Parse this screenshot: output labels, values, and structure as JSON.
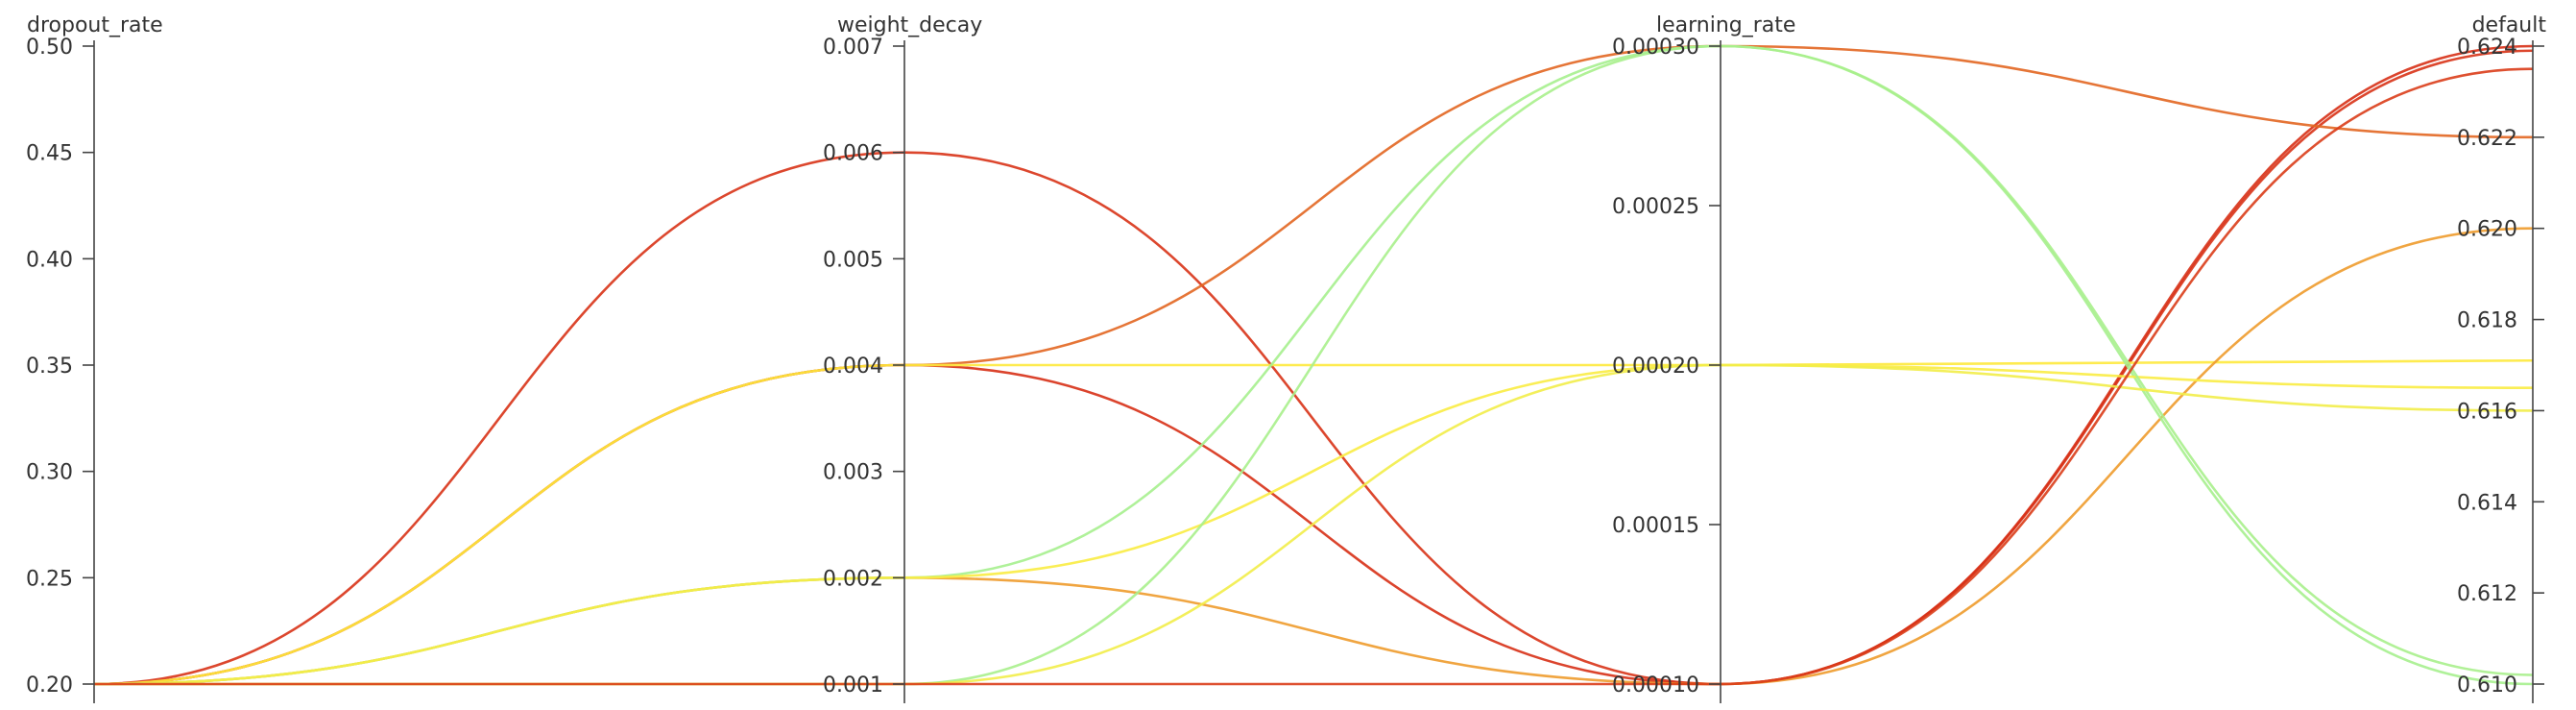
{
  "chart_data": {
    "type": "parallel_coordinates",
    "axes": [
      {
        "name": "dropout_rate",
        "range": [
          0.2,
          0.5
        ],
        "ticks": [
          "0.20",
          "0.25",
          "0.30",
          "0.35",
          "0.40",
          "0.45",
          "0.50"
        ],
        "tick_values": [
          0.2,
          0.25,
          0.3,
          0.35,
          0.4,
          0.45,
          0.5
        ]
      },
      {
        "name": "weight_decay",
        "range": [
          0.001,
          0.007
        ],
        "ticks": [
          "0.001",
          "0.002",
          "0.003",
          "0.004",
          "0.005",
          "0.006",
          "0.007"
        ],
        "tick_values": [
          0.001,
          0.002,
          0.003,
          0.004,
          0.005,
          0.006,
          0.007
        ]
      },
      {
        "name": "learning_rate",
        "range": [
          0.0001,
          0.0003
        ],
        "ticks": [
          "0.00010",
          "0.00015",
          "0.00020",
          "0.00025",
          "0.00030"
        ],
        "tick_values": [
          0.0001,
          0.00015,
          0.0002,
          0.00025,
          0.0003
        ]
      },
      {
        "name": "default",
        "range": [
          0.61,
          0.624
        ],
        "ticks": [
          "0.610",
          "0.612",
          "0.614",
          "0.616",
          "0.618",
          "0.620",
          "0.622",
          "0.624"
        ],
        "tick_values": [
          0.61,
          0.612,
          0.614,
          0.616,
          0.618,
          0.62,
          0.622,
          0.624
        ]
      }
    ],
    "colors": {
      "low": "#a6f08e",
      "mid": "#ffec3d",
      "high": "#d73016"
    },
    "color_metric": "default",
    "runs": [
      {
        "values": [
          0.2,
          0.006,
          0.0001,
          0.6239
        ]
      },
      {
        "values": [
          0.2,
          0.004,
          0.0001,
          0.624
        ]
      },
      {
        "values": [
          0.2,
          0.004,
          0.0003,
          0.622
        ]
      },
      {
        "values": [
          0.2,
          0.004,
          0.0002,
          0.6171
        ]
      },
      {
        "values": [
          0.2,
          0.002,
          0.0001,
          0.62
        ]
      },
      {
        "values": [
          0.2,
          0.002,
          0.0003,
          0.61
        ]
      },
      {
        "values": [
          0.2,
          0.002,
          0.0002,
          0.6165
        ]
      },
      {
        "values": [
          0.2,
          0.001,
          0.0003,
          0.6102
        ]
      },
      {
        "values": [
          0.2,
          0.001,
          0.0002,
          0.616
        ]
      },
      {
        "values": [
          0.2,
          0.001,
          0.0001,
          0.6235
        ]
      }
    ]
  }
}
